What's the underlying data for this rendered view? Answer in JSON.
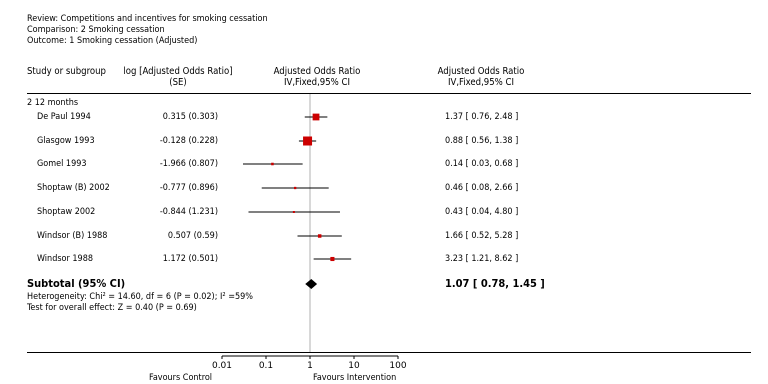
{
  "header": {
    "review": "Review:  Competitions and incentives for smoking cessation",
    "comparison": "Comparison:  2 Smoking cessation",
    "outcome": "Outcome:  1 Smoking cessation (Adjusted)"
  },
  "columns": {
    "study": "Study or subgroup",
    "log_or_line1": "log [Adjusted Odds Ratio]",
    "log_or_line2": "(SE)",
    "or_plot_line1": "Adjusted Odds Ratio",
    "or_plot_line2": "IV,Fixed,95% CI",
    "or_text_line1": "Adjusted Odds Ratio",
    "or_text_line2": "IV,Fixed,95% CI"
  },
  "subgroup_title": "2 12 months",
  "studies": [
    {
      "name": "De Paul 1994",
      "logor": "0.315 (0.303)",
      "ci_text": "1.37 [ 0.76, 2.48 ]"
    },
    {
      "name": "Glasgow 1993",
      "logor": "-0.128 (0.228)",
      "ci_text": "0.88 [ 0.56, 1.38 ]"
    },
    {
      "name": "Gomel 1993",
      "logor": "-1.966 (0.807)",
      "ci_text": "0.14 [ 0.03, 0.68 ]"
    },
    {
      "name": "Shoptaw (B) 2002",
      "logor": "-0.777 (0.896)",
      "ci_text": "0.46 [ 0.08, 2.66 ]"
    },
    {
      "name": "Shoptaw 2002",
      "logor": "-0.844 (1.231)",
      "ci_text": "0.43 [ 0.04, 4.80 ]"
    },
    {
      "name": "Windsor (B) 1988",
      "logor": "0.507 (0.59)",
      "ci_text": "1.66 [ 0.52, 5.28 ]"
    },
    {
      "name": "Windsor 1988",
      "logor": "1.172 (0.501)",
      "ci_text": "3.23 [ 1.21, 8.62 ]"
    }
  ],
  "subtotal": {
    "label": "Subtotal (95% CI)",
    "ci_text": "1.07 [ 0.78, 1.45 ]",
    "heterogeneity": "Heterogeneity: Chi² = 14.60, df = 6 (P = 0.02); I² =59%",
    "overall_effect": "Test for overall effect: Z = 0.40 (P = 0.69)"
  },
  "footer": {
    "favours_left": "Favours Control",
    "favours_right": "Favours Intervention"
  },
  "colors": {
    "square": "#cc0000",
    "diamond": "#000000",
    "line": "#000000",
    "null_line": "#b0b0b0"
  },
  "chart_data": {
    "type": "forest",
    "scale": "log",
    "xlim": [
      0.01,
      100
    ],
    "tick_labels": [
      "0.01",
      "0.1",
      "1",
      "10",
      "100"
    ],
    "ticks": [
      0.01,
      0.1,
      1,
      10,
      100
    ],
    "null_value": 1,
    "series": [
      {
        "study": "De Paul 1994",
        "or": 1.37,
        "lo": 0.76,
        "hi": 2.48,
        "se": 0.303
      },
      {
        "study": "Glasgow 1993",
        "or": 0.88,
        "lo": 0.56,
        "hi": 1.38,
        "se": 0.228
      },
      {
        "study": "Gomel 1993",
        "or": 0.14,
        "lo": 0.03,
        "hi": 0.68,
        "se": 0.807
      },
      {
        "study": "Shoptaw (B) 2002",
        "or": 0.46,
        "lo": 0.08,
        "hi": 2.66,
        "se": 0.896
      },
      {
        "study": "Shoptaw 2002",
        "or": 0.43,
        "lo": 0.04,
        "hi": 4.8,
        "se": 1.231
      },
      {
        "study": "Windsor (B) 1988",
        "or": 1.66,
        "lo": 0.52,
        "hi": 5.28,
        "se": 0.59
      },
      {
        "study": "Windsor 1988",
        "or": 3.23,
        "lo": 1.21,
        "hi": 8.62,
        "se": 0.501
      }
    ],
    "pooled": {
      "or": 1.07,
      "lo": 0.78,
      "hi": 1.45
    }
  }
}
